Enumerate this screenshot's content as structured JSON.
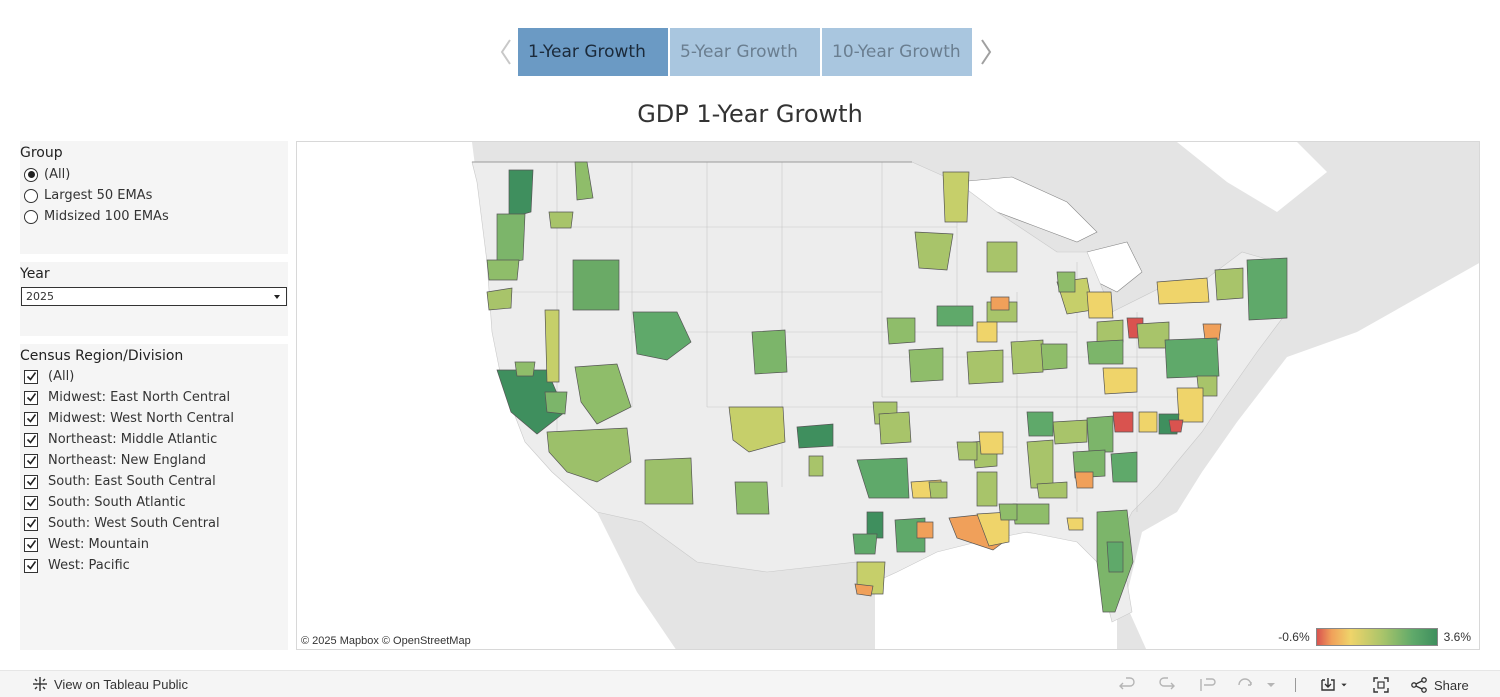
{
  "tabs": [
    {
      "label": "1-Year Growth",
      "active": true
    },
    {
      "label": "5-Year Growth",
      "active": false
    },
    {
      "label": "10-Year Growth",
      "active": false
    }
  ],
  "title": "GDP 1-Year Growth",
  "group_filter": {
    "label": "Group",
    "options": [
      "(All)",
      "Largest 50 EMAs",
      "Midsized 100 EMAs"
    ],
    "selected": "(All)"
  },
  "year_filter": {
    "label": "Year",
    "value": "2025"
  },
  "region_filter": {
    "label": "Census Region/Division",
    "options": [
      "(All)",
      "Midwest: East North Central",
      "Midwest: West North Central",
      "Northeast: Middle Atlantic",
      "Northeast: New England",
      "South: East South Central",
      "South: South Atlantic",
      "South: West South Central",
      "West: Mountain",
      "West: Pacific"
    ]
  },
  "map": {
    "attribution": "© 2025 Mapbox  © OpenStreetMap",
    "legend_min": "-0.6%",
    "legend_max": "3.6%",
    "colors": {
      "low": "#d9534f",
      "mid": "#efd46a",
      "high": "#3f8f5e"
    }
  },
  "footer": {
    "view_label": "View on Tableau Public",
    "share_label": "Share"
  }
}
